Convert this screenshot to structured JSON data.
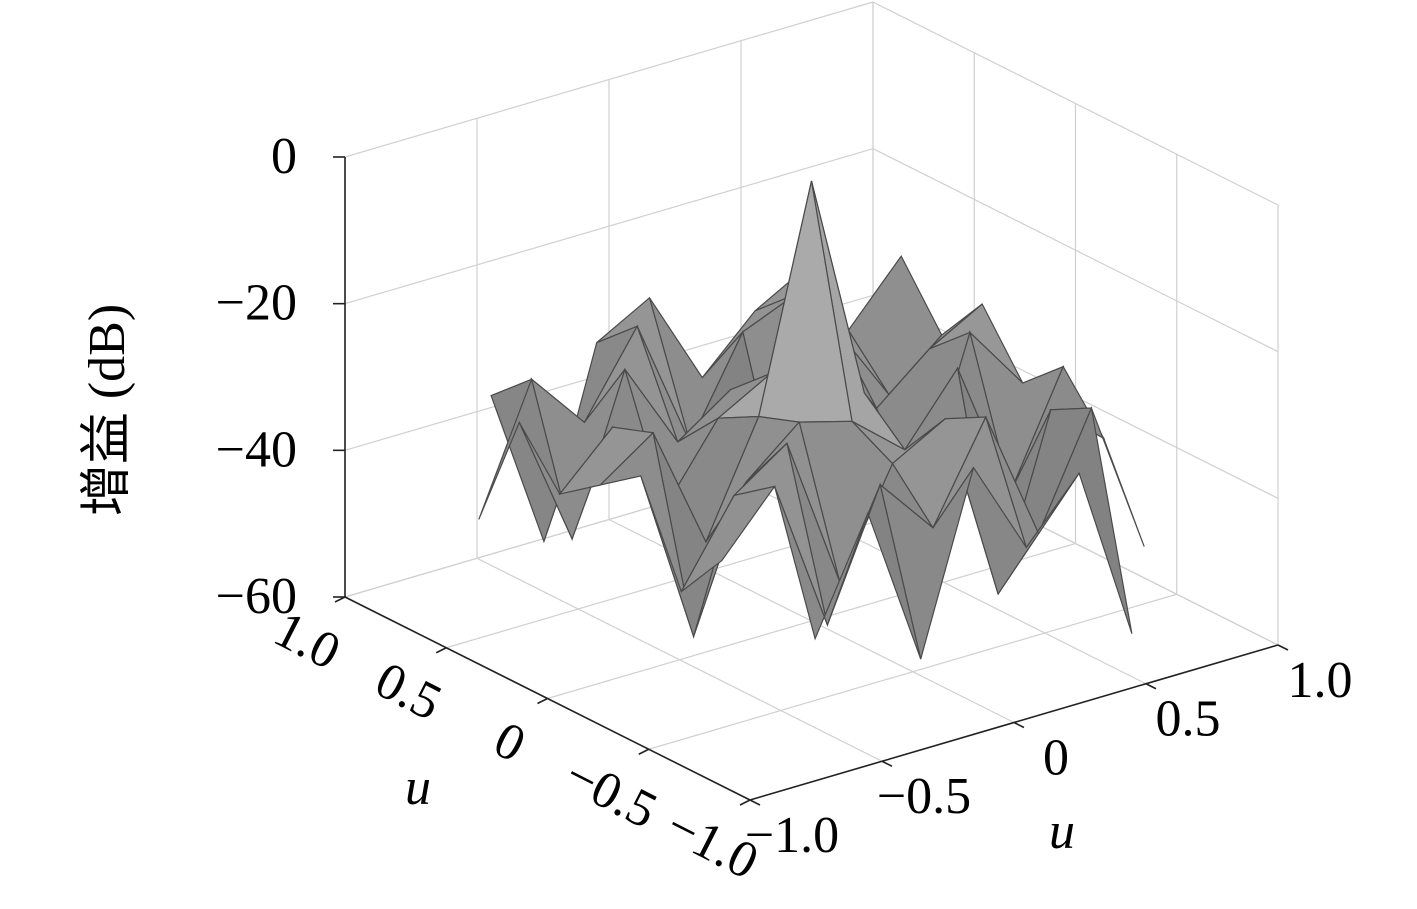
{
  "chart_data": {
    "type": "surface",
    "zlabel": "增益 (dB)",
    "xlabel": "u",
    "ylabel": "u",
    "x": [
      -1,
      -0.8,
      -0.6,
      -0.4,
      -0.2,
      0,
      0.2,
      0.4,
      0.6,
      0.8,
      1
    ],
    "y": [
      -1,
      -0.8,
      -0.6,
      -0.4,
      -0.2,
      0,
      0.2,
      0.4,
      0.6,
      0.8,
      1
    ],
    "z": [
      [
        null,
        null,
        null,
        null,
        null,
        -38,
        null,
        null,
        null,
        null,
        null
      ],
      [
        null,
        null,
        -45,
        -30,
        -52,
        -28,
        -41,
        -33,
        -57,
        null,
        null
      ],
      [
        null,
        -35,
        -27,
        -48,
        -31,
        -39,
        -26,
        -44,
        -29,
        -50,
        null
      ],
      [
        null,
        -42,
        -31,
        -26,
        -47,
        -33,
        -29,
        -55,
        -32,
        -38,
        null
      ],
      [
        null,
        -29,
        -53,
        -34,
        -28,
        -30,
        -36,
        -27,
        -46,
        -31,
        null
      ],
      [
        -40,
        -33,
        -28,
        -45,
        -30,
        0,
        -31,
        -49,
        -27,
        -36,
        -52
      ],
      [
        null,
        -37,
        -30,
        -43,
        -33,
        -29,
        -27,
        -38,
        -32,
        -28,
        null
      ],
      [
        null,
        -30,
        -48,
        -27,
        -39,
        -34,
        -52,
        -30,
        -41,
        -35,
        null
      ],
      [
        null,
        -46,
        -29,
        -37,
        -26,
        -44,
        -31,
        -28,
        -35,
        -27,
        null
      ],
      [
        null,
        null,
        -34,
        -56,
        -31,
        -27,
        -40,
        -33,
        -29,
        null,
        null
      ],
      [
        null,
        null,
        null,
        null,
        null,
        -43,
        null,
        null,
        null,
        null,
        null
      ]
    ],
    "xlim": [
      -1,
      1
    ],
    "ylim": [
      -1,
      1
    ],
    "zlim": [
      -60,
      0
    ],
    "xticks": [
      {
        "value": 1,
        "label": "1.0"
      },
      0.5,
      0,
      {
        "value": -0.5,
        "label": "−0.5"
      },
      {
        "value": -1,
        "label": "−1.0"
      }
    ],
    "yticks": [
      {
        "value": -1,
        "label": "−1.0"
      },
      {
        "value": -0.5,
        "label": "−0.5"
      },
      0,
      0.5,
      {
        "value": 1,
        "label": "1.0"
      }
    ],
    "zticks": [
      0,
      {
        "value": -20,
        "label": "−20"
      },
      {
        "value": -40,
        "label": "−40"
      },
      {
        "value": -60,
        "label": "−60"
      }
    ],
    "grid": true,
    "edge_color": "#4a4a4a"
  }
}
